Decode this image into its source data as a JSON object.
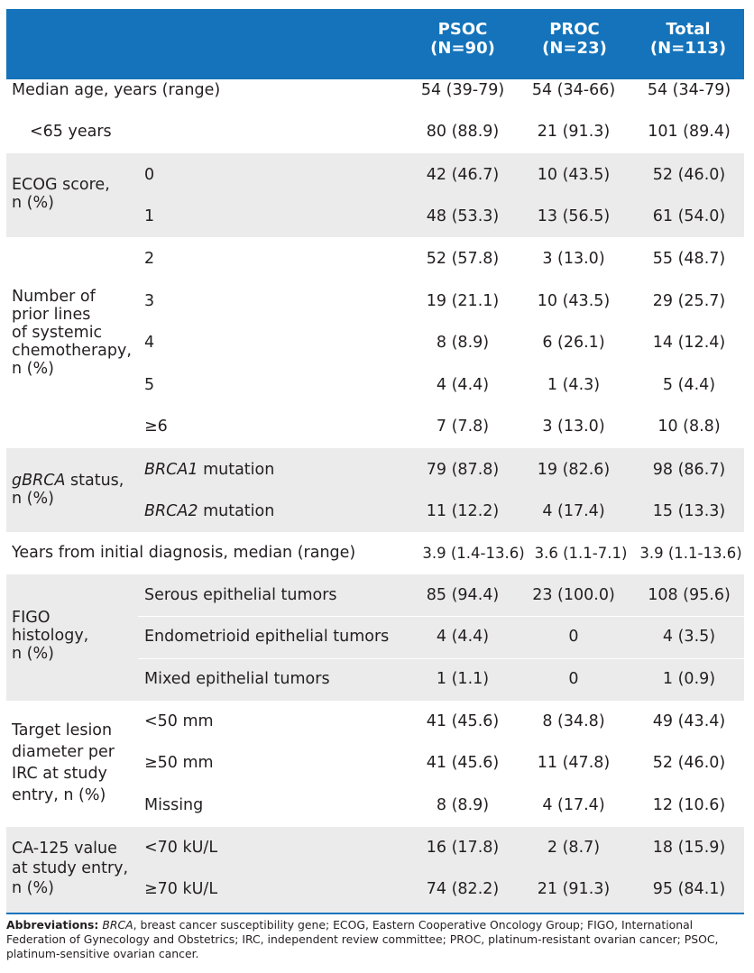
{
  "header": {
    "columns": [
      {
        "name": "PSOC",
        "n": "(N=90)"
      },
      {
        "name": "PROC",
        "n": "(N=23)"
      },
      {
        "name": "Total",
        "n": "(N=113)"
      }
    ]
  },
  "rows": {
    "median_age": {
      "label": "Median age, years (range)",
      "values": [
        "54 (39-79)",
        "54 (34-66)",
        "54 (34-79)"
      ]
    },
    "under65": {
      "label": "<65 years",
      "values": [
        "80 (88.9)",
        "21 (91.3)",
        "101 (89.4)"
      ]
    },
    "ecog": {
      "label_lines": [
        "ECOG score,",
        "n (%)"
      ],
      "items": [
        {
          "sub": "0",
          "values": [
            "42 (46.7)",
            "10 (43.5)",
            "52 (46.0)"
          ]
        },
        {
          "sub": "1",
          "values": [
            "48 (53.3)",
            "13 (56.5)",
            "61 (54.0)"
          ]
        }
      ]
    },
    "prior_lines": {
      "label_lines": [
        "Number of",
        "prior lines",
        "of systemic",
        "chemotherapy,",
        "n (%)"
      ],
      "items": [
        {
          "sub": "2",
          "values": [
            "52 (57.8)",
            "3 (13.0)",
            "55 (48.7)"
          ]
        },
        {
          "sub": "3",
          "values": [
            "19 (21.1)",
            "10 (43.5)",
            "29 (25.7)"
          ]
        },
        {
          "sub": "4",
          "values": [
            "8 (8.9)",
            "6 (26.1)",
            "14 (12.4)"
          ]
        },
        {
          "sub": "5",
          "values": [
            "4 (4.4)",
            "1 (4.3)",
            "5 (4.4)"
          ]
        },
        {
          "sub": "≥6",
          "values": [
            "7 (7.8)",
            "3 (13.0)",
            "10 (8.8)"
          ]
        }
      ]
    },
    "gbrca": {
      "label_italic": "gBRCA",
      "label_rest": " status,",
      "label_line2": "n (%)",
      "items": [
        {
          "sub_italic": "BRCA1",
          "sub_rest": " mutation",
          "values": [
            "79 (87.8)",
            "19 (82.6)",
            "98 (86.7)"
          ]
        },
        {
          "sub_italic": "BRCA2",
          "sub_rest": " mutation",
          "values": [
            "11 (12.2)",
            "4 (17.4)",
            "15 (13.3)"
          ]
        }
      ]
    },
    "years_dx": {
      "label": "Years from initial diagnosis, median (range)",
      "values": [
        "3.9 (1.4-13.6)",
        "3.6 (1.1-7.1)",
        "3.9 (1.1-13.6)"
      ]
    },
    "figo": {
      "label_lines": [
        "FIGO",
        "histology,",
        "n (%)"
      ],
      "items": [
        {
          "sub": "Serous epithelial tumors",
          "values": [
            "85 (94.4)",
            "23 (100.0)",
            "108 (95.6)"
          ]
        },
        {
          "sub": "Endometrioid epithelial tumors",
          "values": [
            "4 (4.4)",
            "0",
            "4 (3.5)"
          ]
        },
        {
          "sub": "Mixed epithelial tumors",
          "values": [
            "1 (1.1)",
            "0",
            "1 (0.9)"
          ]
        }
      ]
    },
    "target": {
      "label_lines": [
        "Target lesion",
        "diameter per",
        "IRC at study",
        "entry, n (%)"
      ],
      "items": [
        {
          "sub": "<50 mm",
          "values": [
            "41 (45.6)",
            "8 (34.8)",
            "49 (43.4)"
          ]
        },
        {
          "sub": "≥50 mm",
          "values": [
            "41 (45.6)",
            "11 (47.8)",
            "52 (46.0)"
          ]
        },
        {
          "sub": "Missing",
          "values": [
            "8 (8.9)",
            "4 (17.4)",
            "12 (10.6)"
          ]
        }
      ]
    },
    "ca125": {
      "label_lines": [
        "CA-125 value",
        "at study entry,",
        "n (%)"
      ],
      "items": [
        {
          "sub": "<70 kU/L",
          "values": [
            "16 (17.8)",
            "2 (8.7)",
            "18 (15.9)"
          ]
        },
        {
          "sub": "≥70 kU/L",
          "values": [
            "74 (82.2)",
            "21 (91.3)",
            "95 (84.1)"
          ]
        }
      ]
    }
  },
  "footnote": {
    "bold": "Abbreviations:",
    "italic": "BRCA",
    "text": ", breast cancer susceptibility gene; ECOG, Eastern Cooperative Oncology Group; FIGO, International Federation of Gynecology and Obstetrics; IRC, independent review committee; PROC, platinum-resistant ovarian cancer; PSOC, platinum-sensitive ovarian cancer."
  },
  "colors": {
    "header_bg": "#1473ba",
    "band_gray": "#ebebeb",
    "text": "#231f20"
  }
}
